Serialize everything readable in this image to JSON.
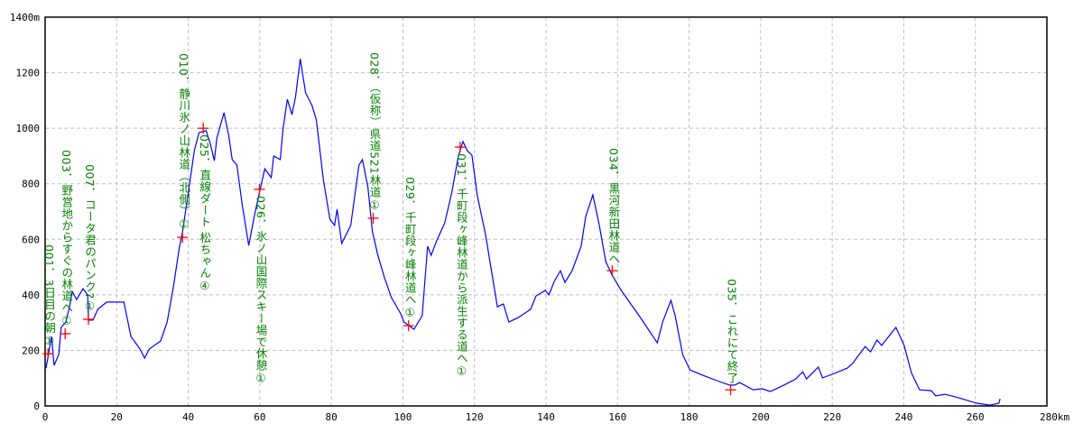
{
  "chart_data": {
    "type": "line",
    "title": "",
    "xlabel": "",
    "ylabel": "",
    "x_unit": "km",
    "y_unit": "m",
    "xlim": [
      0,
      280
    ],
    "ylim": [
      0,
      1400
    ],
    "x_ticks": [
      0,
      20,
      40,
      60,
      80,
      100,
      120,
      140,
      160,
      180,
      200,
      220,
      240,
      260,
      280
    ],
    "x_tick_labels": [
      "0",
      "20",
      "40",
      "60",
      "80",
      "100",
      "120",
      "140",
      "160",
      "180",
      "200",
      "220",
      "240",
      "260",
      "280km"
    ],
    "y_ticks": [
      0,
      200,
      400,
      600,
      800,
      1000,
      1200,
      1400
    ],
    "y_tick_labels": [
      "0",
      "200",
      "400",
      "600",
      "800",
      "1000",
      "1200",
      "1400m"
    ],
    "grid": true,
    "colors": {
      "line": "#0000ff",
      "marker": "#ff0000",
      "label": "#008000",
      "grid": "#c0c0c0",
      "axis": "#000000"
    },
    "series": [
      {
        "x": [
          0.25,
          1.8,
          2.5,
          3.8,
          4.5,
          5.8,
          6.8,
          7.6,
          8.8,
          10.6,
          11.9,
          12.1,
          13.4,
          14.7,
          17.2,
          22.0,
          24.0,
          26.5,
          27.8,
          29.1,
          32.3,
          34.1,
          35.9,
          37.4,
          38.4,
          39.9,
          41.7,
          43.0,
          45.0,
          46.2,
          47.3,
          48.0,
          50.0,
          51.3,
          52.3,
          53.6,
          55.1,
          56.9,
          58.6,
          60.1,
          61.4,
          63.2,
          63.9,
          65.7,
          66.5,
          67.7,
          69.0,
          70.0,
          71.3,
          72.8,
          74.6,
          75.8,
          77.8,
          79.6,
          80.9,
          81.6,
          82.9,
          85.4,
          87.7,
          88.7,
          90.2,
          91.5,
          93.0,
          94.8,
          96.8,
          99.3,
          100.3,
          103.1,
          105.4,
          106.9,
          107.9,
          109.4,
          111.7,
          113.7,
          115.5,
          116.8,
          118.0,
          119.3,
          120.8,
          123.1,
          126.4,
          128.1,
          129.6,
          132.2,
          135.7,
          137.2,
          139.8,
          140.8,
          142.3,
          144.0,
          145.3,
          147.3,
          149.8,
          151.1,
          153.1,
          154.9,
          156.7,
          158.5,
          161.0,
          166.0,
          171.1,
          172.6,
          174.9,
          176.1,
          178.2,
          180.2,
          184.5,
          187.8,
          191.3,
          192.8,
          194.1,
          197.9,
          200.4,
          202.7,
          206.5,
          209.8,
          211.8,
          212.8,
          216.1,
          217.3,
          220.6,
          224.2,
          225.7,
          229.2,
          230.7,
          232.5,
          233.8,
          237.8,
          240.1,
          242.1,
          244.4,
          247.7,
          248.9,
          251.5,
          254.5,
          257.0,
          260.3,
          264.1,
          266.6,
          266.9
        ],
        "y": [
          136,
          250,
          146,
          185,
          283,
          302,
          357,
          412,
          383,
          422,
          400,
          309,
          309,
          348,
          374,
          374,
          250,
          205,
          172,
          205,
          234,
          302,
          432,
          562,
          627,
          757,
          919,
          984,
          991,
          942,
          883,
          965,
          1056,
          974,
          887,
          867,
          724,
          578,
          692,
          780,
          854,
          822,
          900,
          887,
          997,
          1104,
          1049,
          1114,
          1250,
          1127,
          1082,
          1030,
          812,
          672,
          650,
          708,
          585,
          650,
          867,
          887,
          789,
          627,
          542,
          464,
          390,
          334,
          302,
          276,
          325,
          575,
          542,
          594,
          659,
          770,
          900,
          952,
          919,
          903,
          757,
          617,
          357,
          367,
          302,
          318,
          348,
          396,
          416,
          400,
          448,
          487,
          445,
          487,
          575,
          682,
          760,
          650,
          520,
          471,
          416,
          325,
          227,
          302,
          380,
          325,
          185,
          130,
          107,
          91,
          75,
          75,
          84,
          58,
          62,
          52,
          75,
          97,
          123,
          97,
          140,
          101,
          117,
          136,
          153,
          214,
          195,
          237,
          218,
          283,
          218,
          120,
          58,
          55,
          36,
          42,
          32,
          23,
          10,
          3,
          10,
          26
        ]
      }
    ],
    "waypoints": [
      {
        "x": 0.8,
        "y": 188,
        "label": "001．3日目の朝①",
        "placement": "above"
      },
      {
        "x": 5.6,
        "y": 260,
        "label": "003．野営地からすぐの林道へ①",
        "placement": "above"
      },
      {
        "x": 12.1,
        "y": 312,
        "label": "007．コータ君のパンク?①",
        "placement": "above"
      },
      {
        "x": 38.4,
        "y": 607,
        "label": "010．静川氷ノ山林道（北側）①",
        "placement": "above"
      },
      {
        "x": 44.2,
        "y": 1000,
        "label": "025．直線ダート 松ちゃん④",
        "placement": "below"
      },
      {
        "x": 59.9,
        "y": 780,
        "label": "026．氷ノ山国際スキー場で休憩①",
        "placement": "below"
      },
      {
        "x": 91.7,
        "y": 676,
        "label": "028．（仮称）県道521林道①",
        "placement": "above"
      },
      {
        "x": 101.6,
        "y": 289,
        "label": "029．千町段ヶ峰林道へ①",
        "placement": "above"
      },
      {
        "x": 116.0,
        "y": 932,
        "label": "031．千町段ヶ峰林道から派生する道へ①",
        "placement": "below"
      },
      {
        "x": 158.5,
        "y": 487,
        "label": "034．黒河新田林道へ",
        "placement": "above"
      },
      {
        "x": 191.6,
        "y": 58,
        "label": "035．これにて終了",
        "placement": "above"
      }
    ]
  }
}
